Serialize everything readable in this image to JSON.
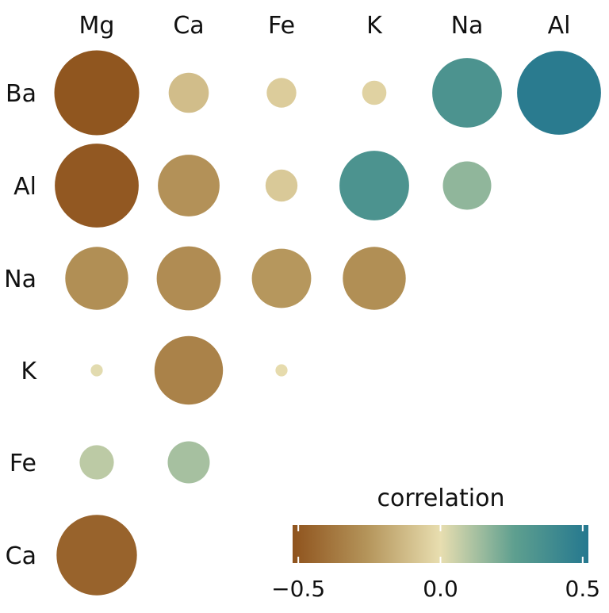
{
  "chart_data": {
    "type": "heatmap",
    "columns": [
      "Mg",
      "Ca",
      "Fe",
      "K",
      "Na",
      "Al"
    ],
    "rows": [
      "Ba",
      "Al",
      "Na",
      "K",
      "Fe",
      "Ca"
    ],
    "cells": [
      {
        "row": "Ba",
        "col": "Mg",
        "value": -0.49
      },
      {
        "row": "Ba",
        "col": "Ca",
        "value": -0.11
      },
      {
        "row": "Ba",
        "col": "Fe",
        "value": -0.06
      },
      {
        "row": "Ba",
        "col": "K",
        "value": -0.04
      },
      {
        "row": "Ba",
        "col": "Na",
        "value": 0.33
      },
      {
        "row": "Ba",
        "col": "Al",
        "value": 0.48
      },
      {
        "row": "Al",
        "col": "Mg",
        "value": -0.48
      },
      {
        "row": "Al",
        "col": "Ca",
        "value": -0.26
      },
      {
        "row": "Al",
        "col": "Fe",
        "value": -0.07
      },
      {
        "row": "Al",
        "col": "K",
        "value": 0.33
      },
      {
        "row": "Al",
        "col": "Na",
        "value": 0.16
      },
      {
        "row": "Al",
        "col": "Al",
        "value": null
      },
      {
        "row": "Na",
        "col": "Mg",
        "value": -0.27
      },
      {
        "row": "Na",
        "col": "Ca",
        "value": -0.28
      },
      {
        "row": "Na",
        "col": "Fe",
        "value": -0.24
      },
      {
        "row": "Na",
        "col": "K",
        "value": -0.27
      },
      {
        "row": "K",
        "col": "Mg",
        "value": 0.01
      },
      {
        "row": "K",
        "col": "Ca",
        "value": -0.32
      },
      {
        "row": "K",
        "col": "Fe",
        "value": -0.01
      },
      {
        "row": "Fe",
        "col": "Mg",
        "value": 0.08
      },
      {
        "row": "Fe",
        "col": "Ca",
        "value": 0.12
      },
      {
        "row": "Ca",
        "col": "Mg",
        "value": -0.44
      }
    ],
    "legend": {
      "title": "correlation",
      "ticks": [
        -0.5,
        0.0,
        0.5
      ],
      "tick_labels": [
        "−0.5",
        "0.0",
        "0.5"
      ],
      "range": [
        -0.52,
        0.52
      ],
      "placement": "bottom-right"
    },
    "colors": {
      "negative": "#8F531D",
      "neutral": "#E8DEB0",
      "positive": "#25788F"
    }
  }
}
